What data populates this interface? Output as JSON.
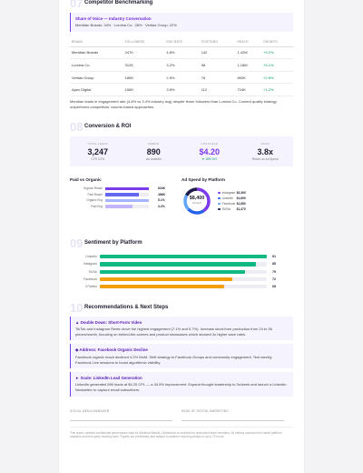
{
  "competitor": {
    "number": "07",
    "title": "Competitor Benchmarking",
    "share": {
      "title": "Share of Voice — Industry Conversation",
      "text": "Meridian Brands: 34% · Lumina Co.: 28% · Veritas Group: 22%"
    },
    "table": {
      "headers": [
        "BRAND",
        "FOLLOWERS",
        "ENG RATE",
        "POSTS/MO",
        "REACH",
        "GROWTH"
      ],
      "rows": [
        [
          "Meridian Brands",
          "247K",
          "4.8%",
          "142",
          "1.42M",
          "+9.2%"
        ],
        [
          "Lumina Co.",
          "312K",
          "3.2%",
          "98",
          "1.18M",
          "+4.1%"
        ],
        [
          "Veritas Group",
          "189K",
          "2.9%",
          "76",
          "892K",
          "+2.8%"
        ],
        [
          "Apex Digital",
          "156K",
          "3.5%",
          "112",
          "724K",
          "+1.2%"
        ]
      ]
    },
    "note": "Meridian leads in engagement rate (4.8% vs 3.4% industry avg) despite fewer followers than Lumina Co. Content quality strategy outperforms competitors' volume-based approaches."
  },
  "conversion": {
    "number": "08",
    "title": "Conversion & ROI",
    "kpis": [
      {
        "label": "TOTAL LEADS",
        "value": "3,247",
        "sub": "CTR 3.2%"
      },
      {
        "label": "DEMOS",
        "value": "890",
        "sub": "via LinkedIn"
      },
      {
        "label": "COST/LEAD",
        "value": "$4.20",
        "sub": "▼ 18% YoY"
      },
      {
        "label": "ROAS",
        "value": "3.8x",
        "sub": "Return on Ad Spend"
      }
    ],
    "paid_vs_organic": {
      "title": "Paid vs Organic",
      "bars": [
        {
          "name": "Organic Reach",
          "value": 624000,
          "label": "624K",
          "color": "#7c3aed"
        },
        {
          "name": "Paid Reach",
          "value": 486000,
          "label": "486K",
          "color": "#6366f1"
        },
        {
          "name": "Organic Eng",
          "value": 5.1,
          "label": "5.1%",
          "color": "#a5b4fc"
        },
        {
          "name": "Paid Eng",
          "value": 3.2,
          "label": "3.2%",
          "color": "#c4b5fd"
        }
      ]
    },
    "ad_spend": {
      "title": "Ad Spend by Platform",
      "total": "$8,400",
      "total_label": "Monthly",
      "slices": [
        {
          "name": "Instagram",
          "value": 3360,
          "label": "$3,360",
          "color": "#7c3aed"
        },
        {
          "name": "LinkedIn",
          "value": 1890,
          "label": "$1,890",
          "color": "#2563eb"
        },
        {
          "name": "Facebook",
          "value": 1680,
          "label": "$1,680",
          "color": "#60a5fa"
        },
        {
          "name": "TikTok",
          "value": 1470,
          "label": "$1,470",
          "color": "#1e1b4b"
        }
      ]
    }
  },
  "sentiment": {
    "number": "09",
    "title": "Sentiment by Platform",
    "bars": [
      {
        "name": "LinkedIn",
        "value": 91,
        "color": "#10b981"
      },
      {
        "name": "Instagram",
        "value": 85,
        "color": "#10b981"
      },
      {
        "name": "TikTok",
        "value": 79,
        "color": "#10b981"
      },
      {
        "name": "Facebook",
        "value": 72,
        "color": "#f59e0b"
      },
      {
        "name": "X/Twitter",
        "value": 68,
        "color": "#f59e0b"
      }
    ]
  },
  "recommendations": {
    "number": "10",
    "title": "Recommendations & Next Steps",
    "items": [
      {
        "title": "▲ Double Down: Short-Form Video",
        "text": "TikTok and Instagram Reels drove the highest engagement (7.1% and 5.7%). Increase short-form production from 24 to 36 pieces/month, focusing on behind-the-scenes and product showcases which showed 3x higher save rates."
      },
      {
        "title": "◆ Address: Facebook Organic Decline",
        "text": "Facebook organic reach declined 4.2% MoM. Shift strategy to Facebook Groups and community engagement. Test weekly Facebook Live sessions to boost algorithmic visibility."
      },
      {
        "title": "► Scale: LinkedIn Lead Generation",
        "text": "LinkedIn generated 890 leads at $4.20 CPL — a 34.5% improvement. Expand thought leadership to 3x/week and launch a LinkedIn Newsletter to capture email subscribers."
      }
    ]
  },
  "signatures": [
    "SOCIAL MEDIA MANAGER",
    "HEAD OF DIGITAL MARKETING"
  ],
  "footer": "This report contains confidential performance data for Meridian Brands. Distribution is restricted to authorized team members. All metrics sourced from native platform analytics and third-party tracking tools. Figures are preliminary and subject to platform reporting delays of up to 72 hours."
}
